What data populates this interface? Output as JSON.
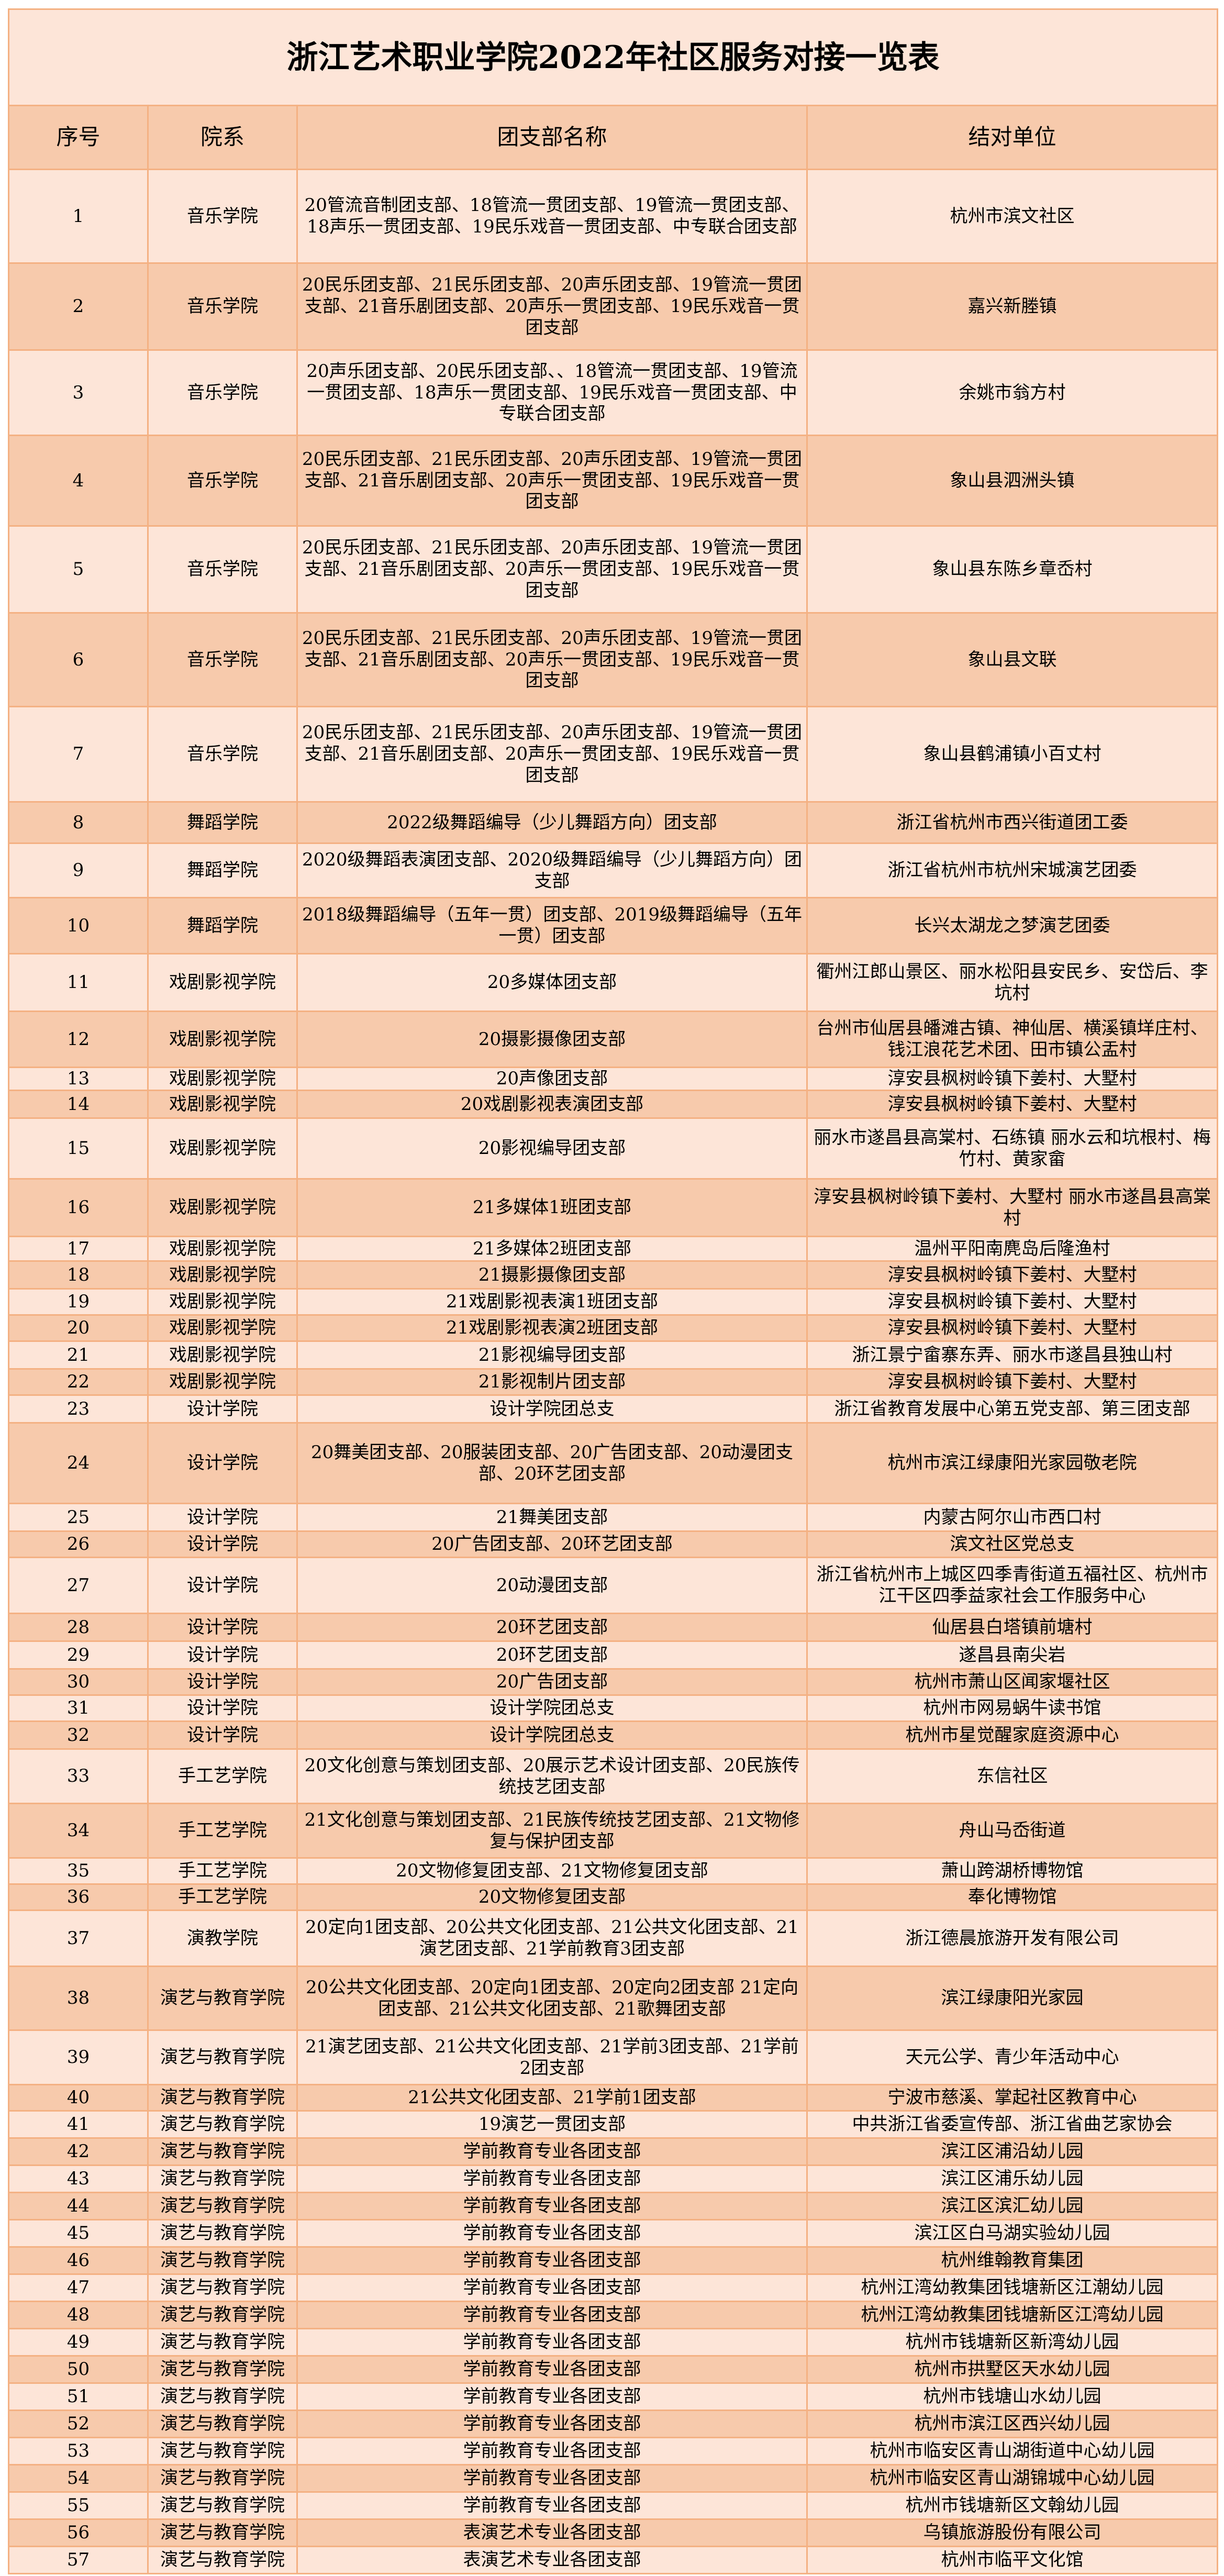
{
  "title": "浙江艺术职业学院2022年社区服务对接一览表",
  "colors": {
    "light_row": "#FDE5D8",
    "dark_row": "#F7CAAC",
    "border": "#F4B183"
  },
  "headers": [
    "序号",
    "院系",
    "团支部名称",
    "结对单位"
  ],
  "rows": [
    [
      "1",
      "音乐学院",
      "20管流音制团支部、18管流一贯团支部、19管流一贯团支部、18声乐一贯团支部、19民乐戏音一贯团支部、中专联合团支部",
      "杭州市滨文社区"
    ],
    [
      "2",
      "音乐学院",
      "20民乐团支部、21民乐团支部、20声乐团支部、19管流一贯团支部、21音乐剧团支部、20声乐一贯团支部、19民乐戏音一贯团支部",
      "嘉兴新塍镇"
    ],
    [
      "3",
      "音乐学院",
      "20声乐团支部、20民乐团支部、、18管流一贯团支部、19管流一贯团支部、18声乐一贯团支部、19民乐戏音一贯团支部、中专联合团支部",
      "余姚市翁方村"
    ],
    [
      "4",
      "音乐学院",
      "20民乐团支部、21民乐团支部、20声乐团支部、19管流一贯团支部、21音乐剧团支部、20声乐一贯团支部、19民乐戏音一贯团支部",
      "象山县泗洲头镇"
    ],
    [
      "5",
      "音乐学院",
      "20民乐团支部、21民乐团支部、20声乐团支部、19管流一贯团支部、21音乐剧团支部、20声乐一贯团支部、19民乐戏音一贯团支部",
      "象山县东陈乡章岙村"
    ],
    [
      "6",
      "音乐学院",
      "20民乐团支部、21民乐团支部、20声乐团支部、19管流一贯团支部、21音乐剧团支部、20声乐一贯团支部、19民乐戏音一贯团支部",
      "象山县文联"
    ],
    [
      "7",
      "音乐学院",
      "20民乐团支部、21民乐团支部、20声乐团支部、19管流一贯团支部、21音乐剧团支部、20声乐一贯团支部、19民乐戏音一贯团支部",
      "象山县鹤浦镇小百丈村"
    ],
    [
      "8",
      "舞蹈学院",
      "2022级舞蹈编导（少儿舞蹈方向）团支部",
      "浙江省杭州市西兴街道团工委"
    ],
    [
      "9",
      "舞蹈学院",
      "2020级舞蹈表演团支部、2020级舞蹈编导（少儿舞蹈方向）团支部",
      "浙江省杭州市杭州宋城演艺团委"
    ],
    [
      "10",
      "舞蹈学院",
      "2018级舞蹈编导（五年一贯）团支部、2019级舞蹈编导（五年一贯）团支部",
      "长兴太湖龙之梦演艺团委"
    ],
    [
      "11",
      "戏剧影视学院",
      "20多媒体团支部",
      "衢州江郎山景区、丽水松阳县安民乡、安岱后、李坑村"
    ],
    [
      "12",
      "戏剧影视学院",
      "20摄影摄像团支部",
      "台州市仙居县皤滩古镇、神仙居、横溪镇垟庄村、钱江浪花艺术团、田市镇公盂村"
    ],
    [
      "13",
      "戏剧影视学院",
      "20声像团支部",
      "淳安县枫树岭镇下姜村、大墅村"
    ],
    [
      "14",
      "戏剧影视学院",
      "20戏剧影视表演团支部",
      "淳安县枫树岭镇下姜村、大墅村"
    ],
    [
      "15",
      "戏剧影视学院",
      "20影视编导团支部",
      "丽水市遂昌县高棠村、石练镇 丽水云和坑根村、梅竹村、黄家畲"
    ],
    [
      "16",
      "戏剧影视学院",
      "21多媒体1班团支部",
      "淳安县枫树岭镇下姜村、大墅村 丽水市遂昌县高棠村"
    ],
    [
      "17",
      "戏剧影视学院",
      "21多媒体2班团支部",
      "温州平阳南麂岛后隆渔村"
    ],
    [
      "18",
      "戏剧影视学院",
      "21摄影摄像团支部",
      "淳安县枫树岭镇下姜村、大墅村"
    ],
    [
      "19",
      "戏剧影视学院",
      "21戏剧影视表演1班团支部",
      "淳安县枫树岭镇下姜村、大墅村"
    ],
    [
      "20",
      "戏剧影视学院",
      "21戏剧影视表演2班团支部",
      "淳安县枫树岭镇下姜村、大墅村"
    ],
    [
      "21",
      "戏剧影视学院",
      "21影视编导团支部",
      "浙江景宁畲寨东弄、丽水市遂昌县独山村"
    ],
    [
      "22",
      "戏剧影视学院",
      "21影视制片团支部",
      "淳安县枫树岭镇下姜村、大墅村"
    ],
    [
      "23",
      "设计学院",
      "设计学院团总支",
      "浙江省教育发展中心第五党支部、第三团支部"
    ],
    [
      "24",
      "设计学院",
      "20舞美团支部、20服装团支部、20广告团支部、20动漫团支部、20环艺团支部",
      "杭州市滨江绿康阳光家园敬老院"
    ],
    [
      "25",
      "设计学院",
      "21舞美团支部",
      "内蒙古阿尔山市西口村"
    ],
    [
      "26",
      "设计学院",
      "20广告团支部、20环艺团支部",
      "滨文社区党总支"
    ],
    [
      "27",
      "设计学院",
      "20动漫团支部",
      "浙江省杭州市上城区四季青街道五福社区、杭州市江干区四季益家社会工作服务中心"
    ],
    [
      "28",
      "设计学院",
      "20环艺团支部",
      "仙居县白塔镇前塘村"
    ],
    [
      "29",
      "设计学院",
      "20环艺团支部",
      "遂昌县南尖岩"
    ],
    [
      "30",
      "设计学院",
      "20广告团支部",
      "杭州市萧山区闻家堰社区"
    ],
    [
      "31",
      "设计学院",
      "设计学院团总支",
      "杭州市网易蜗牛读书馆"
    ],
    [
      "32",
      "设计学院",
      "设计学院团总支",
      "杭州市星觉醒家庭资源中心"
    ],
    [
      "33",
      "手工艺学院",
      "20文化创意与策划团支部、20展示艺术设计团支部、20民族传统技艺团支部",
      "东信社区"
    ],
    [
      "34",
      "手工艺学院",
      "21文化创意与策划团支部、21民族传统技艺团支部、21文物修复与保护团支部",
      "舟山马岙街道"
    ],
    [
      "35",
      "手工艺学院",
      "20文物修复团支部、21文物修复团支部",
      "萧山跨湖桥博物馆"
    ],
    [
      "36",
      "手工艺学院",
      "20文物修复团支部",
      "奉化博物馆"
    ],
    [
      "37",
      "演教学院",
      "20定向1团支部、20公共文化团支部、21公共文化团支部、21演艺团支部、21学前教育3团支部",
      "浙江德晨旅游开发有限公司"
    ],
    [
      "38",
      "演艺与教育学院",
      "20公共文化团支部、20定向1团支部、20定向2团支部 21定向团支部、21公共文化团支部、21歌舞团支部",
      "滨江绿康阳光家园"
    ],
    [
      "39",
      "演艺与教育学院",
      "21演艺团支部、21公共文化团支部、21学前3团支部、21学前2团支部",
      "天元公学、青少年活动中心"
    ],
    [
      "40",
      "演艺与教育学院",
      "21公共文化团支部、21学前1团支部",
      "宁波市慈溪、掌起社区教育中心"
    ],
    [
      "41",
      "演艺与教育学院",
      "19演艺一贯团支部",
      "中共浙江省委宣传部、浙江省曲艺家协会"
    ],
    [
      "42",
      "演艺与教育学院",
      "学前教育专业各团支部",
      "滨江区浦沿幼儿园"
    ],
    [
      "43",
      "演艺与教育学院",
      "学前教育专业各团支部",
      "滨江区浦乐幼儿园"
    ],
    [
      "44",
      "演艺与教育学院",
      "学前教育专业各团支部",
      "滨江区滨汇幼儿园"
    ],
    [
      "45",
      "演艺与教育学院",
      "学前教育专业各团支部",
      "滨江区白马湖实验幼儿园"
    ],
    [
      "46",
      "演艺与教育学院",
      "学前教育专业各团支部",
      "杭州维翰教育集团"
    ],
    [
      "47",
      "演艺与教育学院",
      "学前教育专业各团支部",
      "杭州江湾幼教集团钱塘新区江潮幼儿园"
    ],
    [
      "48",
      "演艺与教育学院",
      "学前教育专业各团支部",
      "杭州江湾幼教集团钱塘新区江湾幼儿园"
    ],
    [
      "49",
      "演艺与教育学院",
      "学前教育专业各团支部",
      "杭州市钱塘新区新湾幼儿园"
    ],
    [
      "50",
      "演艺与教育学院",
      "学前教育专业各团支部",
      "杭州市拱墅区天水幼儿园"
    ],
    [
      "51",
      "演艺与教育学院",
      "学前教育专业各团支部",
      "杭州市钱塘山水幼儿园"
    ],
    [
      "52",
      "演艺与教育学院",
      "学前教育专业各团支部",
      "杭州市滨江区西兴幼儿园"
    ],
    [
      "53",
      "演艺与教育学院",
      "学前教育专业各团支部",
      "杭州市临安区青山湖街道中心幼儿园"
    ],
    [
      "54",
      "演艺与教育学院",
      "学前教育专业各团支部",
      "杭州市临安区青山湖锦城中心幼儿园"
    ],
    [
      "55",
      "演艺与教育学院",
      "学前教育专业各团支部",
      "杭州市钱塘新区文翰幼儿园"
    ],
    [
      "56",
      "演艺与教育学院",
      "表演艺术专业各团支部",
      "乌镇旅游股份有限公司"
    ],
    [
      "57",
      "演艺与教育学院",
      "表演艺术专业各团支部",
      "杭州市临平文化馆"
    ]
  ]
}
